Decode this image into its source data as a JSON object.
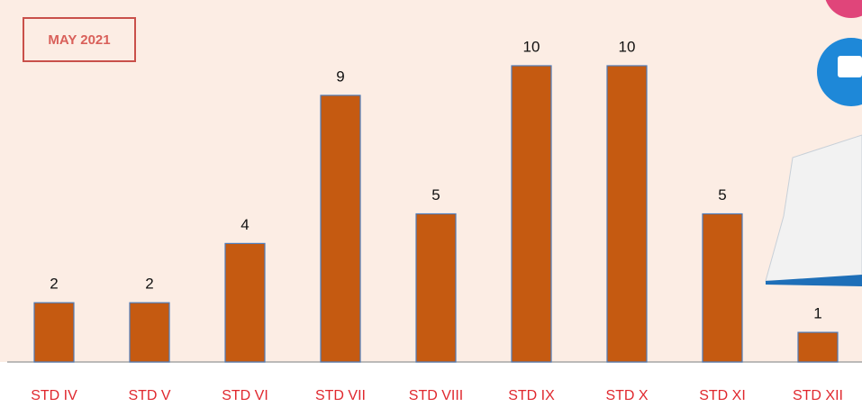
{
  "chart_data": {
    "type": "bar",
    "title": "MAY 2021",
    "categories": [
      "STD IV",
      "STD V",
      "STD VI",
      "STD VII",
      "STD VIII",
      "STD IX",
      "STD X",
      "STD XI",
      "STD XII"
    ],
    "values": [
      2,
      2,
      4,
      9,
      5,
      10,
      10,
      5,
      1
    ],
    "color": "#c55a11"
  }
}
